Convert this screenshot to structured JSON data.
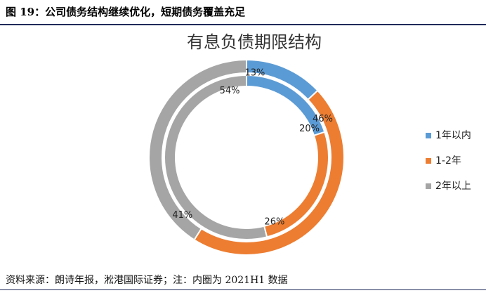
{
  "caption": "图 19：公司债务结构继续优化，短期债务覆盖充足",
  "source_note": "资料来源：朗诗年报，淞港国际证券；注：内圈为 2021H1 数据",
  "chart_data": {
    "type": "donut",
    "title": "有息负债期限结构",
    "categories": [
      "1年以内",
      "1-2年",
      "2年以上"
    ],
    "colors": [
      "#5b9bd5",
      "#ed7d31",
      "#a5a5a5"
    ],
    "series": [
      {
        "ring": "outer",
        "values": [
          13,
          46,
          41
        ],
        "labels": [
          "13%",
          "46%",
          "41%"
        ]
      },
      {
        "ring": "inner",
        "values": [
          20,
          26,
          54
        ],
        "labels": [
          "20%",
          "26%",
          "54%"
        ]
      }
    ],
    "legend": {
      "position": "right",
      "entries": [
        "1年以内",
        "1-2年",
        "2年以上"
      ]
    }
  }
}
